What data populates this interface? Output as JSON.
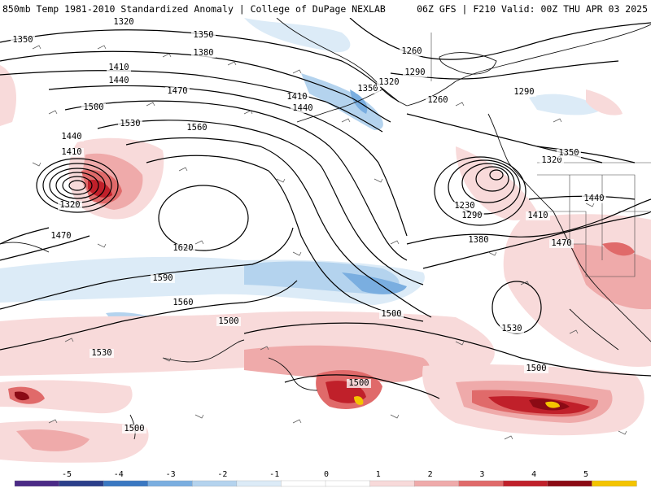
{
  "header": {
    "title": "850mb Temp 1981-2010 Standardized Anomaly | College of DuPage NEXLAB",
    "run_info": "06Z GFS | F210 Valid: 00Z THU APR 03 2025"
  },
  "colors": {
    "anomaly_scale": [
      "#4b2a86",
      "#2b3f8a",
      "#3a78c2",
      "#7aaee0",
      "#b4d3ee",
      "#dcebf7",
      "#ffffff",
      "#ffffff",
      "#f8dada",
      "#efaaaa",
      "#e06a6a",
      "#c0202a",
      "#8b0a14",
      "#f4c400"
    ],
    "contour": "#000000",
    "coast": "#111111",
    "border": "#444444"
  },
  "contour_labels": [
    "1320",
    "1350",
    "1350",
    "1380",
    "1410",
    "1440",
    "1470",
    "1500",
    "1530",
    "1560",
    "1620",
    "1590",
    "1560",
    "1530",
    "1500",
    "1410",
    "1320",
    "1440",
    "1470",
    "1410",
    "1440",
    "1350",
    "1320",
    "1290",
    "1260",
    "1260",
    "1290",
    "1320",
    "1350",
    "1230",
    "1290",
    "1380",
    "1410",
    "1440",
    "1470",
    "1530",
    "1500",
    "1500",
    "1500",
    "1500"
  ],
  "colorbar": {
    "ticks": [
      "-5",
      "-4",
      "-3",
      "-2",
      "-1",
      "0",
      "1",
      "2",
      "3",
      "4",
      "5"
    ]
  }
}
